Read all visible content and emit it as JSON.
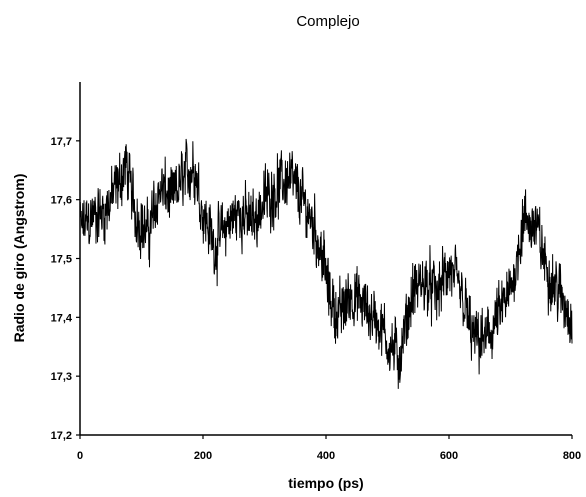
{
  "chart_data": {
    "type": "line",
    "title": "Complejo",
    "xlabel": "tiempo (ps)",
    "ylabel": "Radio de giro (Angstrom)",
    "xlim": [
      0,
      800
    ],
    "ylim": [
      17.2,
      17.8
    ],
    "xticks": [
      0,
      200,
      400,
      600,
      800
    ],
    "xtick_labels": [
      "0",
      "200",
      "400",
      "600",
      "800"
    ],
    "yticks": [
      17.2,
      17.3,
      17.4,
      17.5,
      17.6,
      17.7
    ],
    "ytick_labels": [
      "17,2",
      "17,3",
      "17,4",
      "17,5",
      "17,6",
      "17,7"
    ],
    "grid": false,
    "legend": "none",
    "line_color": "#000000",
    "series": [
      {
        "x": [
          0,
          20,
          40,
          60,
          75,
          90,
          110,
          130,
          150,
          170,
          185,
          200,
          220,
          240,
          260,
          280,
          300,
          320,
          340,
          360,
          380,
          395,
          405,
          420,
          440,
          460,
          480,
          500,
          520,
          540,
          560,
          580,
          600,
          620,
          640,
          660,
          680,
          700,
          720,
          740,
          760,
          780,
          800
        ],
        "y": [
          17.55,
          17.57,
          17.58,
          17.62,
          17.66,
          17.58,
          17.54,
          17.62,
          17.6,
          17.64,
          17.66,
          17.58,
          17.52,
          17.56,
          17.58,
          17.56,
          17.6,
          17.62,
          17.64,
          17.6,
          17.56,
          17.5,
          17.44,
          17.4,
          17.44,
          17.42,
          17.4,
          17.36,
          17.33,
          17.44,
          17.46,
          17.44,
          17.48,
          17.44,
          17.36,
          17.36,
          17.4,
          17.44,
          17.56,
          17.56,
          17.48,
          17.44,
          17.4
        ]
      }
    ]
  }
}
